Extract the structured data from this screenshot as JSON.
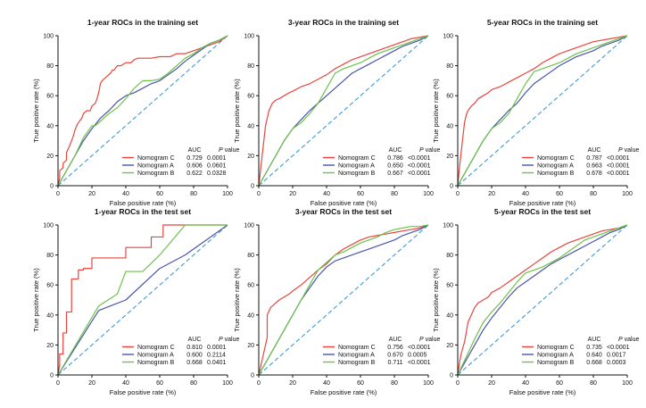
{
  "colors": {
    "c": "#e8453c",
    "a": "#4a55a8",
    "b": "#6cc24a",
    "diag": "#3a9ad9",
    "axis": "#111111"
  },
  "legend_headers": {
    "auc": "AUC",
    "p_italic": "P",
    "p_rest": " value"
  },
  "chart_data": [
    {
      "type": "line",
      "title": "1-year ROCs in the training set",
      "xlabel": "False positive rate (%)",
      "ylabel": "True positive rate (%)",
      "xlim": [
        0,
        100
      ],
      "ylim": [
        0,
        100
      ],
      "xticks": [
        "0",
        "20",
        "40",
        "60",
        "80",
        "100"
      ],
      "yticks": [
        "0",
        "20",
        "40",
        "60",
        "80",
        "100"
      ],
      "series": [
        {
          "name": "Nomogram C",
          "key": "c",
          "auc": "0.729",
          "p": "0.0001",
          "x": [
            0,
            1,
            1,
            3,
            3,
            5,
            5,
            7,
            8,
            9,
            10,
            11,
            12,
            14,
            15,
            17,
            19,
            20,
            22,
            23,
            24,
            25,
            26,
            28,
            29,
            31,
            32,
            33,
            35,
            37,
            40,
            43,
            45,
            47,
            55,
            60,
            66,
            70,
            75,
            80,
            85,
            90,
            95,
            100
          ],
          "y": [
            0,
            5,
            10,
            12,
            15,
            17,
            22,
            27,
            30,
            33,
            37,
            40,
            42,
            45,
            48,
            50,
            50,
            53,
            55,
            58,
            62,
            68,
            70,
            72,
            73,
            75,
            77,
            77,
            80,
            80,
            82,
            82,
            84,
            85,
            85,
            86,
            86,
            88,
            88,
            90,
            92,
            94,
            96,
            100
          ]
        },
        {
          "name": "Nomogram A",
          "key": "a",
          "auc": "0.606",
          "p": "0.0601",
          "x": [
            0,
            5,
            10,
            15,
            20,
            25,
            30,
            35,
            40,
            45,
            50,
            55,
            60,
            65,
            70,
            75,
            80,
            85,
            90,
            95,
            100
          ],
          "y": [
            0,
            10,
            20,
            30,
            38,
            45,
            50,
            56,
            60,
            62,
            65,
            68,
            70,
            74,
            78,
            83,
            87,
            91,
            95,
            97,
            100
          ]
        },
        {
          "name": "Nomogram B",
          "key": "b",
          "auc": "0.622",
          "p": "0.0328",
          "x": [
            0,
            5,
            10,
            15,
            20,
            22,
            25,
            30,
            35,
            40,
            45,
            50,
            55,
            60,
            65,
            70,
            75,
            80,
            85,
            90,
            95,
            100
          ],
          "y": [
            0,
            10,
            20,
            32,
            40,
            40,
            43,
            48,
            52,
            58,
            65,
            70,
            70,
            71,
            75,
            80,
            85,
            88,
            92,
            95,
            97,
            100
          ]
        }
      ]
    },
    {
      "type": "line",
      "title": "3-year ROCs in the training set",
      "xlabel": "False positive rate (%)",
      "ylabel": "True positive rate (%)",
      "xlim": [
        0,
        100
      ],
      "ylim": [
        0,
        100
      ],
      "xticks": [
        "0",
        "20",
        "40",
        "60",
        "80",
        "100"
      ],
      "yticks": [
        "0",
        "20",
        "40",
        "60",
        "80",
        "100"
      ],
      "series": [
        {
          "name": "Nomogram C",
          "key": "c",
          "auc": "0.786",
          "p": "<0.0001",
          "x": [
            0,
            1,
            2,
            3,
            4,
            5,
            6,
            8,
            10,
            12,
            15,
            18,
            20,
            25,
            30,
            35,
            40,
            45,
            50,
            55,
            60,
            65,
            70,
            75,
            80,
            85,
            90,
            95,
            100
          ],
          "y": [
            0,
            10,
            20,
            30,
            40,
            45,
            50,
            55,
            57,
            58,
            60,
            62,
            63,
            66,
            68,
            71,
            74,
            78,
            81,
            84,
            86,
            88,
            90,
            92,
            94,
            96,
            98,
            99,
            100
          ]
        },
        {
          "name": "Nomogram A",
          "key": "a",
          "auc": "0.650",
          "p": "<0.0001",
          "x": [
            0,
            5,
            10,
            15,
            20,
            25,
            30,
            35,
            40,
            45,
            50,
            55,
            60,
            65,
            70,
            75,
            80,
            85,
            90,
            95,
            100
          ],
          "y": [
            0,
            10,
            20,
            30,
            38,
            44,
            50,
            55,
            60,
            65,
            70,
            75,
            78,
            81,
            84,
            87,
            90,
            93,
            95,
            97,
            100
          ]
        },
        {
          "name": "Nomogram B",
          "key": "b",
          "auc": "0.667",
          "p": "<0.0001",
          "x": [
            0,
            5,
            10,
            15,
            20,
            25,
            30,
            35,
            40,
            45,
            50,
            55,
            60,
            65,
            70,
            75,
            80,
            85,
            90,
            95,
            100
          ],
          "y": [
            0,
            10,
            20,
            30,
            38,
            42,
            48,
            55,
            65,
            75,
            78,
            80,
            82,
            85,
            88,
            90,
            92,
            94,
            96,
            98,
            100
          ]
        }
      ]
    },
    {
      "type": "line",
      "title": "5-year ROCs in the training set",
      "xlabel": "False positive rate (%)",
      "ylabel": "True positive rate (%)",
      "xlim": [
        0,
        100
      ],
      "ylim": [
        0,
        100
      ],
      "xticks": [
        "0",
        "20",
        "40",
        "60",
        "80",
        "100"
      ],
      "yticks": [
        "0",
        "20",
        "40",
        "60",
        "80",
        "100"
      ],
      "series": [
        {
          "name": "Nomogram C",
          "key": "c",
          "auc": "0.787",
          "p": "<0.0001",
          "x": [
            0,
            1,
            2,
            3,
            4,
            5,
            6,
            8,
            10,
            12,
            15,
            18,
            20,
            25,
            30,
            35,
            40,
            45,
            50,
            55,
            60,
            65,
            70,
            75,
            80,
            85,
            90,
            95,
            100
          ],
          "y": [
            0,
            12,
            22,
            32,
            42,
            47,
            50,
            53,
            55,
            58,
            60,
            62,
            64,
            66,
            69,
            72,
            75,
            78,
            82,
            85,
            88,
            90,
            92,
            94,
            96,
            97,
            98,
            99,
            100
          ]
        },
        {
          "name": "Nomogram A",
          "key": "a",
          "auc": "0.663",
          "p": "<0.0001",
          "x": [
            0,
            5,
            10,
            15,
            20,
            25,
            30,
            35,
            40,
            45,
            50,
            55,
            60,
            65,
            70,
            75,
            80,
            85,
            90,
            95,
            100
          ],
          "y": [
            0,
            10,
            20,
            30,
            38,
            44,
            50,
            55,
            62,
            68,
            72,
            76,
            80,
            83,
            86,
            88,
            90,
            93,
            95,
            97,
            100
          ]
        },
        {
          "name": "Nomogram B",
          "key": "b",
          "auc": "0.678",
          "p": "<0.0001",
          "x": [
            0,
            5,
            10,
            15,
            20,
            25,
            30,
            35,
            40,
            45,
            50,
            55,
            60,
            65,
            70,
            75,
            80,
            85,
            90,
            95,
            100
          ],
          "y": [
            0,
            10,
            20,
            30,
            38,
            42,
            48,
            58,
            68,
            76,
            78,
            80,
            82,
            85,
            88,
            90,
            92,
            94,
            96,
            98,
            100
          ]
        }
      ]
    },
    {
      "type": "line",
      "title": "1-year ROCs in the test set",
      "xlabel": "False positive rate (%)",
      "ylabel": "True positive rate (%)",
      "xlim": [
        0,
        100
      ],
      "ylim": [
        0,
        100
      ],
      "xticks": [
        "0",
        "20",
        "40",
        "60",
        "80",
        "100"
      ],
      "yticks": [
        "0",
        "20",
        "40",
        "60",
        "80",
        "100"
      ],
      "series": [
        {
          "name": "Nomogram C",
          "key": "c",
          "auc": "0.810",
          "p": "0.0001",
          "x": [
            0,
            1,
            1,
            3,
            3,
            5,
            5,
            8,
            8,
            10,
            10,
            12,
            12,
            15,
            15,
            20,
            20,
            40,
            40,
            55,
            55,
            62,
            62,
            65,
            65,
            100
          ],
          "y": [
            0,
            7,
            14,
            14,
            28,
            28,
            42,
            42,
            64,
            64,
            64,
            64,
            70,
            70,
            71,
            71,
            78,
            78,
            85,
            85,
            92,
            92,
            100,
            100,
            100,
            100
          ]
        },
        {
          "name": "Nomogram A",
          "key": "a",
          "auc": "0.600",
          "p": "0.2114",
          "x": [
            0,
            24,
            40,
            60,
            75,
            100
          ],
          "y": [
            0,
            43,
            50,
            71,
            80,
            100
          ]
        },
        {
          "name": "Nomogram B",
          "key": "b",
          "auc": "0.668",
          "p": "0.0401",
          "x": [
            0,
            24,
            35,
            40,
            50,
            60,
            75,
            100
          ],
          "y": [
            0,
            46,
            54,
            69,
            69,
            80,
            100,
            100
          ]
        }
      ]
    },
    {
      "type": "line",
      "title": "3-year ROCs in the test set",
      "xlabel": "False positive rate (%)",
      "ylabel": "True positive rate (%)",
      "xlim": [
        0,
        100
      ],
      "ylim": [
        0,
        100
      ],
      "xticks": [
        "0",
        "20",
        "40",
        "60",
        "80",
        "100"
      ],
      "yticks": [
        "0",
        "20",
        "40",
        "60",
        "80",
        "100"
      ],
      "series": [
        {
          "name": "Nomogram C",
          "key": "c",
          "auc": "0.756",
          "p": "<0.0001",
          "x": [
            0,
            1,
            2,
            3,
            4,
            5,
            5,
            7,
            9,
            10,
            12,
            15,
            18,
            20,
            25,
            30,
            35,
            40,
            45,
            50,
            55,
            60,
            65,
            70,
            75,
            80,
            85,
            90,
            95,
            100
          ],
          "y": [
            0,
            5,
            10,
            15,
            20,
            25,
            40,
            45,
            47,
            48,
            50,
            52,
            54,
            56,
            60,
            65,
            70,
            74,
            80,
            84,
            87,
            90,
            92,
            93,
            94,
            95,
            96,
            97,
            98,
            100
          ]
        },
        {
          "name": "Nomogram A",
          "key": "a",
          "auc": "0.670",
          "p": "0.0005",
          "x": [
            0,
            5,
            10,
            15,
            20,
            25,
            30,
            35,
            40,
            45,
            50,
            55,
            60,
            65,
            70,
            75,
            80,
            85,
            90,
            95,
            100
          ],
          "y": [
            0,
            10,
            20,
            30,
            40,
            50,
            58,
            66,
            72,
            76,
            78,
            80,
            82,
            84,
            86,
            88,
            90,
            93,
            95,
            97,
            100
          ]
        },
        {
          "name": "Nomogram B",
          "key": "b",
          "auc": "0.711",
          "p": "<0.0001",
          "x": [
            0,
            5,
            10,
            15,
            20,
            25,
            30,
            35,
            40,
            45,
            50,
            55,
            60,
            65,
            70,
            75,
            80,
            85,
            90,
            95,
            100
          ],
          "y": [
            0,
            10,
            20,
            30,
            40,
            50,
            60,
            70,
            75,
            80,
            82,
            85,
            88,
            90,
            92,
            95,
            97,
            98,
            99,
            99,
            100
          ]
        }
      ]
    },
    {
      "type": "line",
      "title": "5-year ROCs in the test set",
      "xlabel": "False positive rate (%)",
      "ylabel": "True positive rate (%)",
      "xlim": [
        0,
        100
      ],
      "ylim": [
        0,
        100
      ],
      "xticks": [
        "0",
        "20",
        "40",
        "60",
        "80",
        "100"
      ],
      "yticks": [
        "0",
        "20",
        "40",
        "60",
        "80",
        "100"
      ],
      "series": [
        {
          "name": "Nomogram C",
          "key": "c",
          "auc": "0.735",
          "p": "<0.0001",
          "x": [
            0,
            1,
            2,
            3,
            4,
            5,
            6,
            8,
            10,
            12,
            15,
            18,
            20,
            25,
            30,
            35,
            40,
            45,
            50,
            55,
            60,
            65,
            70,
            75,
            80,
            85,
            90,
            95,
            100
          ],
          "y": [
            0,
            8,
            14,
            18,
            22,
            28,
            35,
            40,
            45,
            48,
            50,
            52,
            55,
            58,
            62,
            66,
            70,
            74,
            78,
            82,
            85,
            88,
            90,
            92,
            94,
            96,
            97,
            98,
            100
          ]
        },
        {
          "name": "Nomogram A",
          "key": "a",
          "auc": "0.640",
          "p": "0.0017",
          "x": [
            0,
            5,
            10,
            15,
            20,
            25,
            30,
            35,
            40,
            45,
            50,
            55,
            60,
            65,
            70,
            75,
            80,
            85,
            90,
            95,
            100
          ],
          "y": [
            0,
            10,
            20,
            30,
            38,
            45,
            52,
            58,
            62,
            66,
            70,
            74,
            77,
            80,
            83,
            86,
            89,
            92,
            95,
            97,
            100
          ]
        },
        {
          "name": "Nomogram B",
          "key": "b",
          "auc": "0.668",
          "p": "0.0003",
          "x": [
            0,
            5,
            10,
            15,
            20,
            25,
            30,
            35,
            40,
            45,
            50,
            55,
            60,
            65,
            70,
            75,
            80,
            85,
            90,
            95,
            100
          ],
          "y": [
            0,
            12,
            24,
            35,
            42,
            48,
            55,
            62,
            68,
            70,
            72,
            75,
            78,
            82,
            86,
            90,
            92,
            94,
            96,
            98,
            100
          ]
        }
      ]
    }
  ]
}
